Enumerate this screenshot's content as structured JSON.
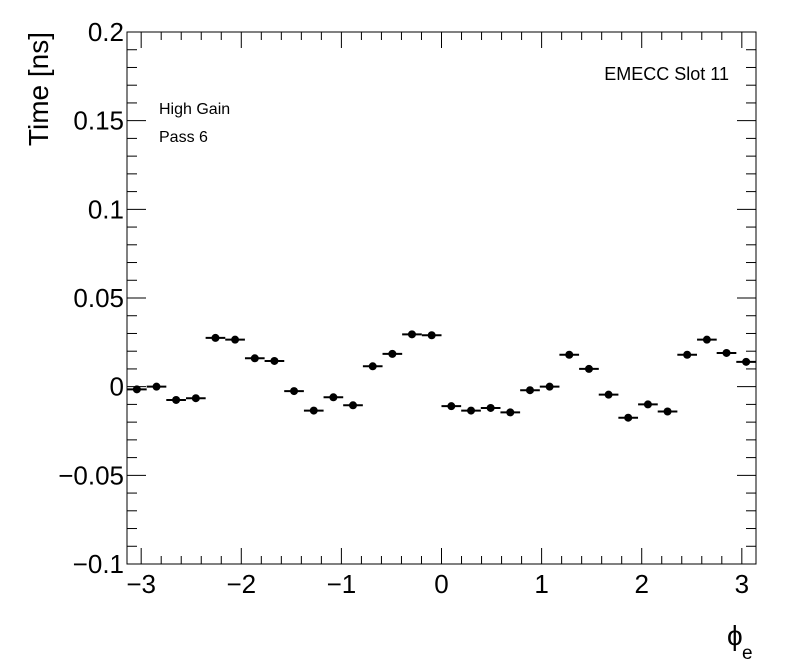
{
  "chart_data": {
    "type": "scatter",
    "title": "",
    "xlabel": "ϕ",
    "xlabel_subscript": "e",
    "ylabel": "Time [ns]",
    "xlim": [
      -3.1416,
      3.1416
    ],
    "ylim": [
      -0.1,
      0.2
    ],
    "x_tick_labels": [
      "−3",
      "−2",
      "−1",
      "0",
      "1",
      "2",
      "3"
    ],
    "x_tick_values": [
      -3,
      -2,
      -1,
      0,
      1,
      2,
      3
    ],
    "y_tick_labels": [
      "−0.1",
      "−0.05",
      "0",
      "0.05",
      "0.1",
      "0.15",
      "0.2"
    ],
    "y_tick_values": [
      -0.1,
      -0.05,
      0,
      0.05,
      0.1,
      0.15,
      0.2
    ],
    "grid": false,
    "marker_color": "#000000",
    "x": [
      -3.043,
      -2.847,
      -2.651,
      -2.454,
      -2.258,
      -2.062,
      -1.865,
      -1.669,
      -1.473,
      -1.276,
      -1.08,
      -0.884,
      -0.687,
      -0.491,
      -0.295,
      -0.098,
      0.098,
      0.295,
      0.491,
      0.687,
      0.884,
      1.08,
      1.276,
      1.473,
      1.669,
      1.865,
      2.062,
      2.258,
      2.454,
      2.651,
      2.847,
      3.043
    ],
    "x_err": 0.0982,
    "y": [
      -0.0015,
      0.0,
      -0.0075,
      -0.0065,
      0.0275,
      0.0265,
      0.016,
      0.0145,
      -0.0025,
      -0.0135,
      -0.006,
      -0.0105,
      0.0115,
      0.0185,
      0.0295,
      0.029,
      -0.011,
      -0.0135,
      -0.012,
      -0.0145,
      -0.002,
      0.0,
      0.018,
      0.01,
      -0.0045,
      -0.0175,
      -0.01,
      -0.014,
      0.018,
      0.0265,
      0.019,
      0.014
    ],
    "annotations": [
      "EMECC Slot 11",
      "High Gain",
      "Pass 6"
    ]
  }
}
